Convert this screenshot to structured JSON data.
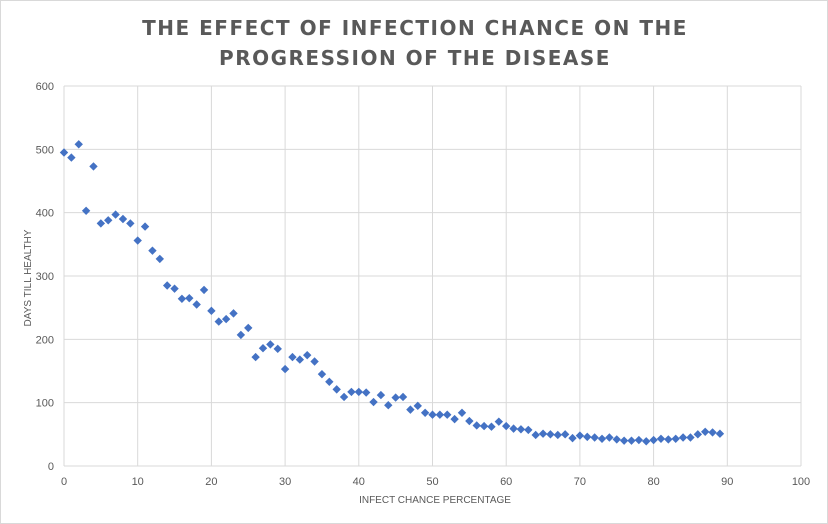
{
  "chart_data": {
    "type": "scatter",
    "title_lines": [
      "THE EFFECT OF INFECTION CHANCE ON THE",
      "PROGRESSION OF THE DISEASE"
    ],
    "xlabel": "INFECT CHANCE PERCENTAGE",
    "ylabel": "DAYS TILL HEALTHY",
    "xlim": [
      0,
      100
    ],
    "ylim": [
      0,
      600
    ],
    "xticks": [
      0,
      10,
      20,
      30,
      40,
      50,
      60,
      70,
      80,
      90,
      100
    ],
    "yticks": [
      0,
      100,
      200,
      300,
      400,
      500,
      600
    ],
    "grid": true,
    "marker": "diamond",
    "color": "#4472c4",
    "x": [
      0,
      1,
      2,
      3,
      4,
      5,
      6,
      7,
      8,
      9,
      10,
      11,
      12,
      13,
      14,
      15,
      16,
      17,
      18,
      19,
      20,
      21,
      22,
      23,
      24,
      25,
      26,
      27,
      28,
      29,
      30,
      31,
      32,
      33,
      34,
      35,
      36,
      37,
      38,
      39,
      40,
      41,
      42,
      43,
      44,
      45,
      46,
      47,
      48,
      49,
      50,
      51,
      52,
      53,
      54,
      55,
      56,
      57,
      58,
      59,
      60,
      61,
      62,
      63,
      64,
      65,
      66,
      67,
      68,
      69,
      70,
      71,
      72,
      73,
      74,
      75,
      76,
      77,
      78,
      79,
      80,
      81,
      82,
      83,
      84,
      85,
      86,
      87,
      88,
      89
    ],
    "y": [
      495,
      487,
      508,
      403,
      473,
      383,
      388,
      397,
      390,
      383,
      356,
      378,
      340,
      327,
      285,
      280,
      264,
      265,
      255,
      278,
      245,
      228,
      232,
      241,
      207,
      218,
      172,
      186,
      192,
      185,
      153,
      172,
      168,
      175,
      165,
      145,
      133,
      121,
      109,
      117,
      117,
      116,
      101,
      112,
      96,
      108,
      109,
      89,
      95,
      84,
      81,
      81,
      81,
      74,
      84,
      71,
      64,
      63,
      62,
      70,
      63,
      59,
      58,
      57,
      49,
      51,
      50,
      49,
      50,
      44,
      48,
      46,
      45,
      43,
      45,
      42,
      40,
      40,
      41,
      39,
      41,
      43,
      42,
      43,
      45,
      45,
      50,
      54,
      53,
      51
    ]
  }
}
